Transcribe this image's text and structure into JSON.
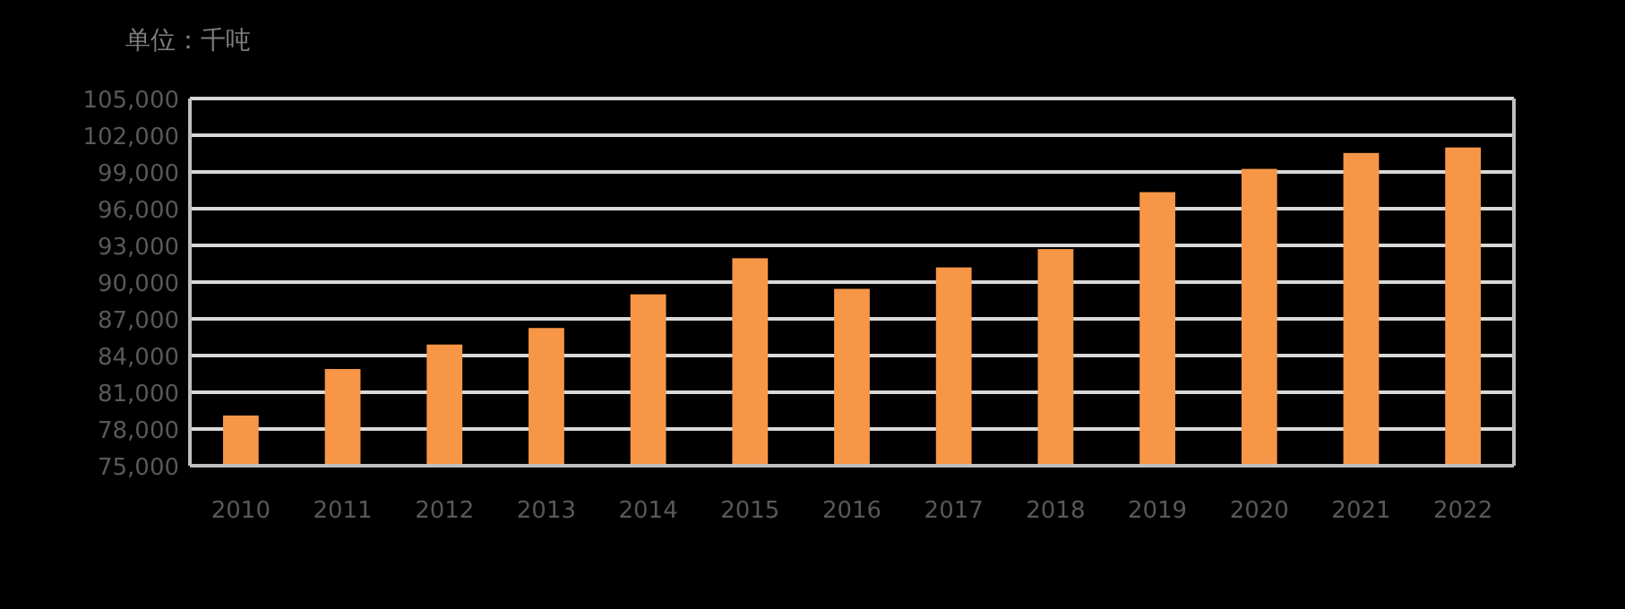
{
  "chart_data": {
    "type": "bar",
    "title": "单位：千吨",
    "categories": [
      "2010",
      "2011",
      "2012",
      "2013",
      "2014",
      "2015",
      "2016",
      "2017",
      "2018",
      "2019",
      "2020",
      "2021",
      "2022"
    ],
    "values": [
      79100,
      82900,
      84900,
      86250,
      89000,
      91950,
      89450,
      91200,
      92700,
      97350,
      99250,
      100550,
      101000
    ],
    "color": "#f79646",
    "ylim": [
      75000,
      105000
    ],
    "yticks": [
      {
        "value": 75000,
        "label": "75,000"
      },
      {
        "value": 78000,
        "label": "78,000"
      },
      {
        "value": 81000,
        "label": "81,000"
      },
      {
        "value": 84000,
        "label": "84,000"
      },
      {
        "value": 87000,
        "label": "87,000"
      },
      {
        "value": 90000,
        "label": "90,000"
      },
      {
        "value": 93000,
        "label": "93,000"
      },
      {
        "value": 96000,
        "label": "96,000"
      },
      {
        "value": 99000,
        "label": "99,000"
      },
      {
        "value": 102000,
        "label": "102,000"
      },
      {
        "value": 105000,
        "label": "105,000"
      }
    ],
    "grid": "y"
  }
}
